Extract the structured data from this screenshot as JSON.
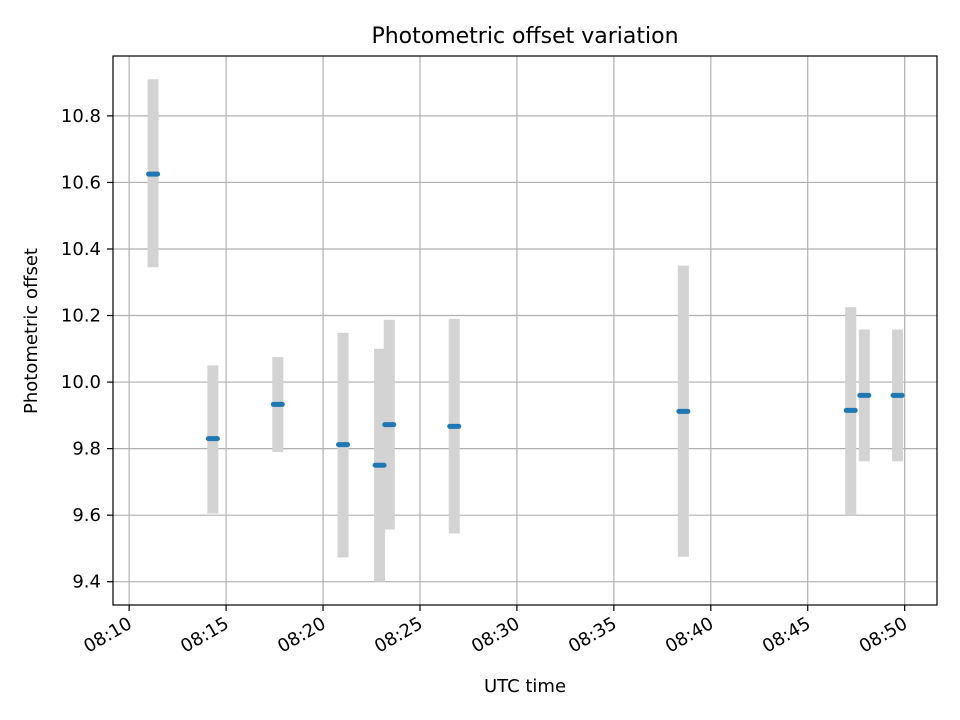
{
  "chart_data": {
    "type": "scatter",
    "title": "Photometric offset variation",
    "xlabel": "UTC time",
    "ylabel": "Photometric offset",
    "x_ticks": [
      "08:10",
      "08:15",
      "08:20",
      "08:25",
      "08:30",
      "08:35",
      "08:40",
      "08:45",
      "08:50"
    ],
    "y_ticks": [
      "9.4",
      "9.6",
      "9.8",
      "10.0",
      "10.2",
      "10.4",
      "10.6",
      "10.8"
    ],
    "xlim": [
      "08:09:10",
      "08:51:40"
    ],
    "ylim": [
      9.33,
      10.98
    ],
    "grid": true,
    "series": [
      {
        "points": [
          {
            "time": "08:11:14",
            "y": 10.625,
            "err_low": 10.345,
            "err_high": 10.91
          },
          {
            "time": "08:14:19",
            "y": 9.83,
            "err_low": 9.605,
            "err_high": 10.05
          },
          {
            "time": "08:17:40",
            "y": 9.933,
            "err_low": 9.79,
            "err_high": 10.075
          },
          {
            "time": "08:21:02",
            "y": 9.812,
            "err_low": 9.473,
            "err_high": 10.148
          },
          {
            "time": "08:22:55",
            "y": 9.75,
            "err_low": 9.4,
            "err_high": 10.1
          },
          {
            "time": "08:23:25",
            "y": 9.872,
            "err_low": 9.557,
            "err_high": 10.187
          },
          {
            "time": "08:26:46",
            "y": 9.867,
            "err_low": 9.545,
            "err_high": 10.19
          },
          {
            "time": "08:38:35",
            "y": 9.912,
            "err_low": 9.475,
            "err_high": 10.35
          },
          {
            "time": "08:47:13",
            "y": 9.915,
            "err_low": 9.6,
            "err_high": 10.225
          },
          {
            "time": "08:47:55",
            "y": 9.96,
            "err_low": 9.762,
            "err_high": 10.158
          },
          {
            "time": "08:49:38",
            "y": 9.96,
            "err_low": 9.762,
            "err_high": 10.158
          }
        ]
      }
    ]
  },
  "colors": {
    "marker": "#1f77b4",
    "errorbar": "#d3d3d3",
    "grid": "#b0b0b0",
    "axes": "#000000"
  }
}
